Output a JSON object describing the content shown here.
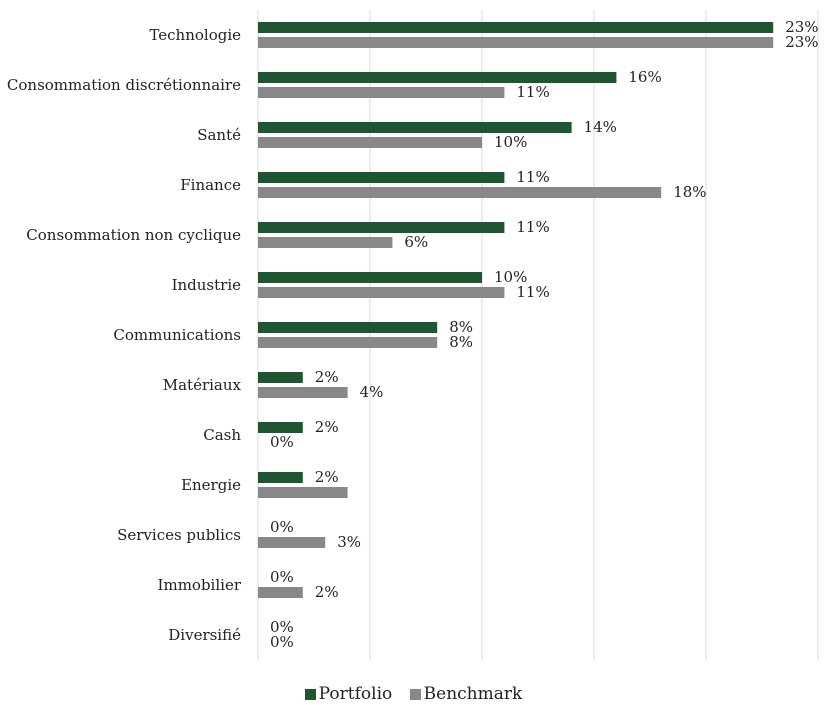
{
  "chart_data": {
    "type": "bar",
    "orientation": "horizontal",
    "categories": [
      "Technologie",
      "Consommation discrétionnaire",
      "Santé",
      "Finance",
      "Consommation non cyclique",
      "Industrie",
      "Communications",
      "Matériaux",
      "Cash",
      "Energie",
      "Services publics",
      "Immobilier",
      "Diversifié"
    ],
    "series": [
      {
        "name": "Portfolio",
        "color": "#1e5631",
        "values": [
          23,
          16,
          14,
          11,
          11,
          10,
          8,
          2,
          2,
          2,
          0,
          0,
          0
        ],
        "labels": [
          "23%",
          "16%",
          "14%",
          "11%",
          "11%",
          "10%",
          "8%",
          "2%",
          "2%",
          "2%",
          "0%",
          "0%",
          "0%"
        ]
      },
      {
        "name": "Benchmark",
        "color": "#888888",
        "values": [
          23,
          11,
          10,
          18,
          6,
          11,
          8,
          4,
          0,
          4,
          3,
          2,
          0
        ],
        "labels": [
          "23%",
          "11%",
          "10%",
          "18%",
          "6%",
          "11%",
          "8%",
          "4%",
          "0%",
          "",
          "3%",
          "2%",
          "0%"
        ]
      }
    ],
    "xlim": [
      0,
      25
    ],
    "grid": true,
    "legend_position": "bottom"
  }
}
